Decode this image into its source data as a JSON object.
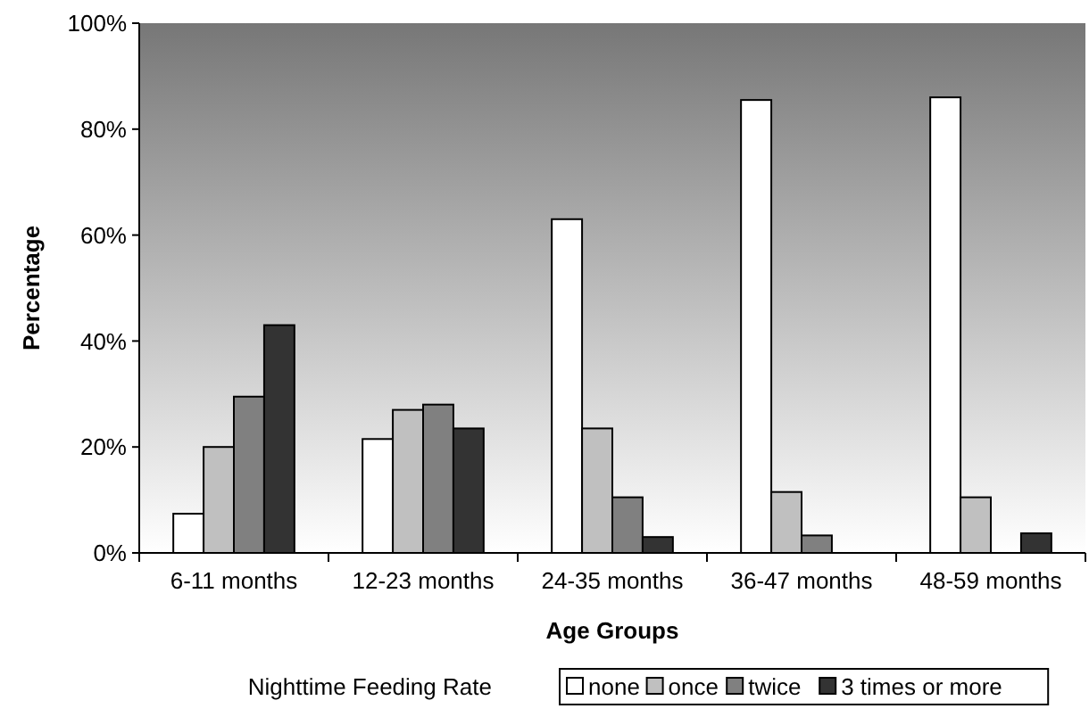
{
  "chart_data": {
    "type": "bar",
    "xlabel": "Age Groups",
    "ylabel": "Percentage",
    "legend_title": "Nighttime Feeding Rate",
    "legend": "bottom",
    "grid": false,
    "categories": [
      "6-11 months",
      "12-23 months",
      "24-35 months",
      "36-47 months",
      "48-59 months"
    ],
    "ylim": [
      0,
      100
    ],
    "yticks": [
      {
        "value": 0,
        "label": "0%"
      },
      {
        "value": 20,
        "label": "20%"
      },
      {
        "value": 40,
        "label": "40%"
      },
      {
        "value": 60,
        "label": "60%"
      },
      {
        "value": 80,
        "label": "80%"
      },
      {
        "value": 100,
        "label": "100%"
      }
    ],
    "series": [
      {
        "name": "none",
        "color": "#ffffff",
        "values": [
          7.4,
          21.5,
          63,
          85.5,
          86
        ]
      },
      {
        "name": "once",
        "color": "#c0c0c0",
        "values": [
          20,
          27,
          23.5,
          11.5,
          10.5
        ]
      },
      {
        "name": "twice",
        "color": "#808080",
        "values": [
          29.5,
          28,
          10.5,
          3.3,
          null
        ]
      },
      {
        "name": "3 times or more",
        "color": "#333333",
        "values": [
          43,
          23.5,
          3,
          null,
          3.7
        ]
      }
    ]
  }
}
